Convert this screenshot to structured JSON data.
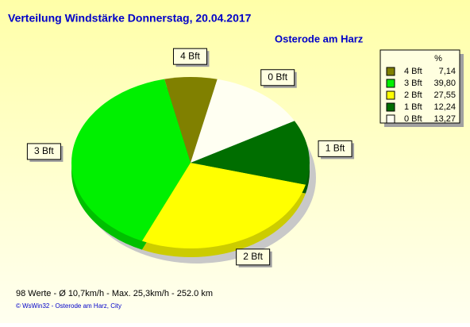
{
  "chart_data": {
    "type": "pie",
    "title": "Verteilung Windstärke  Donnerstag, 20.04.2017",
    "subtitle": "Osterode am Harz",
    "legend_header": "%",
    "categories": [
      "4 Bft",
      "3 Bft",
      "2 Bft",
      "1 Bft",
      "0 Bft"
    ],
    "values": [
      7.14,
      39.8,
      27.55,
      12.24,
      13.27
    ],
    "value_labels": [
      "7,14",
      "39,80",
      "27,55",
      "12,24",
      "13,27"
    ],
    "colors": [
      "#808000",
      "#00f000",
      "#ffff00",
      "#006e00",
      "#fffff2"
    ],
    "footer": "98 Werte   -   Ø 10,7km/h   -   Max. 25,3km/h   -   252.0 km",
    "credit": "© WsWin32  -  Osterode am Harz, City"
  }
}
